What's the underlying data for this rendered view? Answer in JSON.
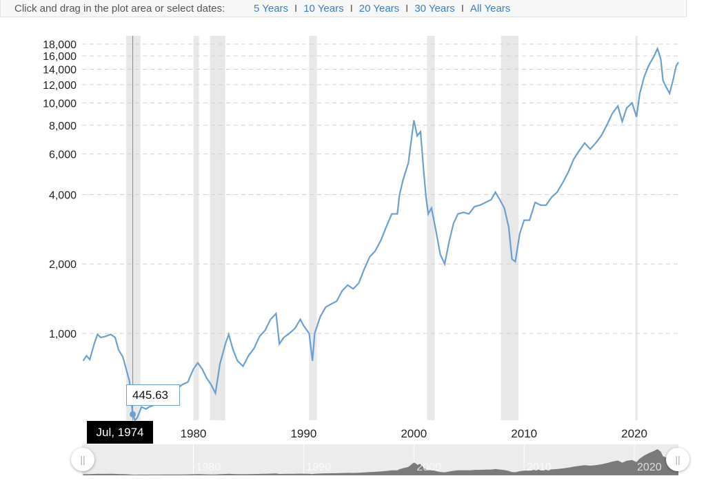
{
  "header": {
    "prompt": "Click and drag in the plot area or select dates:",
    "range_links": [
      "5 Years",
      "10 Years",
      "20 Years",
      "30 Years",
      "All Years"
    ],
    "separator": "I"
  },
  "tooltip": {
    "value": "445.63",
    "date": "Jul, 1974"
  },
  "colors": {
    "line": "#6a9fd0",
    "recession": "#e8e8e8",
    "navigator_fill": "#7a7a7a",
    "crosshair": "#888888"
  },
  "chart_data": {
    "type": "line",
    "y_scale": "log",
    "ylim": [
      420,
      18500
    ],
    "xlim": [
      1969.9,
      2024.0
    ],
    "y_ticks": [
      1000,
      2000,
      4000,
      6000,
      8000,
      10000,
      12000,
      14000,
      16000,
      18000
    ],
    "y_tick_labels": [
      "1,000",
      "2,000",
      "4,000",
      "6,000",
      "8,000",
      "10,000",
      "12,000",
      "14,000",
      "16,000",
      "18,000"
    ],
    "x_ticks": [
      1980,
      1990,
      2000,
      2010,
      2020
    ],
    "x_tick_labels": [
      "1980",
      "1990",
      "2000",
      "2010",
      "2020"
    ],
    "grid": "horizontal dashed",
    "recession_bands": [
      [
        1973.9,
        1975.2
      ],
      [
        1980.0,
        1980.5
      ],
      [
        1981.5,
        1982.9
      ],
      [
        1990.5,
        1991.2
      ],
      [
        2001.2,
        2001.9
      ],
      [
        2007.9,
        2009.5
      ],
      [
        2020.1,
        2020.3
      ]
    ],
    "highlight": {
      "x": 1974.5,
      "y": 445.63
    },
    "series": [
      {
        "values": [
          [
            1970.0,
            760
          ],
          [
            1970.3,
            800
          ],
          [
            1970.6,
            770
          ],
          [
            1971.0,
            900
          ],
          [
            1971.3,
            990
          ],
          [
            1971.6,
            960
          ],
          [
            1972.0,
            970
          ],
          [
            1972.5,
            990
          ],
          [
            1972.9,
            960
          ],
          [
            1973.2,
            850
          ],
          [
            1973.6,
            790
          ],
          [
            1973.9,
            700
          ],
          [
            1974.2,
            620
          ],
          [
            1974.5,
            445.63
          ],
          [
            1974.7,
            400
          ],
          [
            1974.9,
            430
          ],
          [
            1975.3,
            480
          ],
          [
            1975.7,
            470
          ],
          [
            1976.0,
            480
          ],
          [
            1976.5,
            490
          ],
          [
            1977.0,
            500
          ],
          [
            1977.5,
            530
          ],
          [
            1978.0,
            555
          ],
          [
            1978.5,
            575
          ],
          [
            1979.0,
            600
          ],
          [
            1979.5,
            615
          ],
          [
            1980.0,
            700
          ],
          [
            1980.4,
            745
          ],
          [
            1980.8,
            700
          ],
          [
            1981.2,
            640
          ],
          [
            1981.6,
            600
          ],
          [
            1982.0,
            550
          ],
          [
            1982.4,
            735
          ],
          [
            1982.9,
            900
          ],
          [
            1983.2,
            990
          ],
          [
            1983.6,
            850
          ],
          [
            1984.0,
            760
          ],
          [
            1984.5,
            720
          ],
          [
            1985.0,
            800
          ],
          [
            1985.5,
            860
          ],
          [
            1986.0,
            970
          ],
          [
            1986.5,
            1030
          ],
          [
            1987.0,
            1150
          ],
          [
            1987.5,
            1220
          ],
          [
            1987.8,
            900
          ],
          [
            1988.2,
            960
          ],
          [
            1988.7,
            1000
          ],
          [
            1989.2,
            1050
          ],
          [
            1989.7,
            1150
          ],
          [
            1990.0,
            1080
          ],
          [
            1990.5,
            1000
          ],
          [
            1990.8,
            760
          ],
          [
            1991.0,
            1000
          ],
          [
            1991.5,
            1180
          ],
          [
            1992.0,
            1300
          ],
          [
            1992.5,
            1340
          ],
          [
            1993.0,
            1380
          ],
          [
            1993.5,
            1530
          ],
          [
            1994.0,
            1620
          ],
          [
            1994.5,
            1560
          ],
          [
            1995.0,
            1650
          ],
          [
            1995.5,
            1900
          ],
          [
            1996.0,
            2150
          ],
          [
            1996.5,
            2280
          ],
          [
            1997.0,
            2530
          ],
          [
            1997.5,
            2900
          ],
          [
            1998.0,
            3300
          ],
          [
            1998.5,
            3300
          ],
          [
            1998.7,
            4000
          ],
          [
            1999.0,
            4600
          ],
          [
            1999.5,
            5500
          ],
          [
            2000.0,
            8400
          ],
          [
            2000.3,
            7200
          ],
          [
            2000.6,
            7500
          ],
          [
            2000.9,
            5000
          ],
          [
            2001.1,
            3900
          ],
          [
            2001.3,
            3300
          ],
          [
            2001.6,
            3500
          ],
          [
            2002.0,
            2800
          ],
          [
            2002.4,
            2200
          ],
          [
            2002.8,
            2000
          ],
          [
            2003.2,
            2500
          ],
          [
            2003.6,
            3000
          ],
          [
            2004.0,
            3300
          ],
          [
            2004.5,
            3350
          ],
          [
            2005.0,
            3300
          ],
          [
            2005.5,
            3550
          ],
          [
            2006.0,
            3600
          ],
          [
            2006.5,
            3700
          ],
          [
            2007.0,
            3800
          ],
          [
            2007.4,
            4100
          ],
          [
            2007.8,
            3800
          ],
          [
            2008.2,
            3500
          ],
          [
            2008.6,
            2900
          ],
          [
            2008.9,
            2100
          ],
          [
            2009.2,
            2050
          ],
          [
            2009.6,
            2700
          ],
          [
            2010.0,
            3100
          ],
          [
            2010.5,
            3100
          ],
          [
            2011.0,
            3700
          ],
          [
            2011.5,
            3600
          ],
          [
            2012.0,
            3600
          ],
          [
            2012.5,
            3900
          ],
          [
            2013.0,
            4100
          ],
          [
            2013.5,
            4500
          ],
          [
            2014.0,
            5000
          ],
          [
            2014.5,
            5700
          ],
          [
            2015.0,
            6200
          ],
          [
            2015.5,
            6700
          ],
          [
            2016.0,
            6300
          ],
          [
            2016.5,
            6700
          ],
          [
            2017.0,
            7200
          ],
          [
            2017.5,
            8000
          ],
          [
            2018.0,
            9000
          ],
          [
            2018.5,
            9700
          ],
          [
            2018.9,
            8300
          ],
          [
            2019.3,
            9500
          ],
          [
            2019.8,
            10000
          ],
          [
            2020.2,
            8700
          ],
          [
            2020.5,
            11000
          ],
          [
            2020.9,
            13000
          ],
          [
            2021.3,
            14500
          ],
          [
            2021.8,
            16000
          ],
          [
            2022.1,
            17200
          ],
          [
            2022.4,
            15500
          ],
          [
            2022.6,
            12500
          ],
          [
            2022.9,
            11700
          ],
          [
            2023.2,
            11000
          ],
          [
            2023.5,
            12500
          ],
          [
            2023.8,
            14500
          ],
          [
            2024.0,
            15000
          ]
        ]
      }
    ]
  }
}
